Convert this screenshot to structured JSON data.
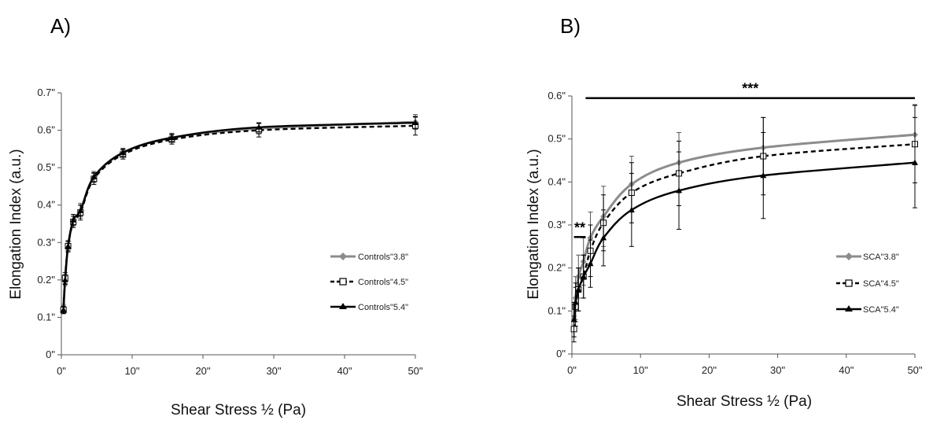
{
  "chart_data": [
    {
      "type": "line",
      "panel_label": "A)",
      "xlabel": "Shear Stress ½ (Pa)",
      "ylabel": "Elongation  Index  (a.u.)",
      "xlim": [
        0,
        50
      ],
      "ylim": [
        0,
        0.7
      ],
      "x_ticks": [
        0,
        10,
        20,
        30,
        40,
        50
      ],
      "x_tick_labels": [
        "0\"",
        "10\"",
        "20\"",
        "30\"",
        "40\"",
        "50\""
      ],
      "y_ticks": [
        0,
        0.1,
        0.2,
        0.3,
        0.4,
        0.5,
        0.6,
        0.7
      ],
      "y_tick_labels": [
        "0\"",
        "0.1\"",
        "0.2\"",
        "0.3\"",
        "0.4\"",
        "0.5\"",
        "0.6\"",
        "0.7\""
      ],
      "grid": false,
      "legend_position": "bottom-right",
      "x": [
        0.3,
        0.53,
        0.95,
        1.69,
        2.7,
        4.6,
        8.7,
        15.6,
        27.9,
        50
      ],
      "series": [
        {
          "name": "Controls\"3.8\"",
          "color": "#8c8c8c",
          "dash": "solid",
          "marker": "diamond",
          "values": [
            0.125,
            0.2,
            0.29,
            0.36,
            0.385,
            0.475,
            0.54,
            0.58,
            0.605,
            0.622
          ],
          "errors": [
            0.01,
            0.015,
            0.015,
            0.015,
            0.02,
            0.015,
            0.012,
            0.012,
            0.015,
            0.02
          ]
        },
        {
          "name": "Controls\"4.5\"",
          "color": "#000000",
          "dash": "dashed",
          "marker": "square",
          "values": [
            0.12,
            0.205,
            0.29,
            0.355,
            0.38,
            0.47,
            0.535,
            0.575,
            0.6,
            0.612
          ],
          "errors": [
            0.01,
            0.015,
            0.015,
            0.015,
            0.02,
            0.015,
            0.012,
            0.012,
            0.018,
            0.025
          ]
        },
        {
          "name": "Controls\"5.4\"",
          "color": "#000000",
          "dash": "solid",
          "marker": "triangle",
          "values": [
            0.12,
            0.2,
            0.29,
            0.36,
            0.385,
            0.475,
            0.54,
            0.58,
            0.608,
            0.62
          ],
          "errors": [
            0.01,
            0.012,
            0.012,
            0.015,
            0.015,
            0.012,
            0.01,
            0.01,
            0.012,
            0.015
          ]
        }
      ]
    },
    {
      "type": "line",
      "panel_label": "B)",
      "xlabel": "Shear Stress ½ (Pa)",
      "ylabel": "Elongation  Index  (a.u.)",
      "xlim": [
        0,
        50
      ],
      "ylim": [
        0,
        0.6
      ],
      "x_ticks": [
        0,
        10,
        20,
        30,
        40,
        50
      ],
      "x_tick_labels": [
        "0\"",
        "10\"",
        "20\"",
        "30\"",
        "40\"",
        "50\""
      ],
      "y_ticks": [
        0,
        0.1,
        0.2,
        0.3,
        0.4,
        0.5,
        0.6
      ],
      "y_tick_labels": [
        "0\"",
        "0.1\"",
        "0.2\"",
        "0.3\"",
        "0.4\"",
        "0.5\"",
        "0.6\""
      ],
      "grid": false,
      "legend_position": "bottom-right",
      "x": [
        0.3,
        0.53,
        0.95,
        1.69,
        2.7,
        4.6,
        8.7,
        15.6,
        27.9,
        50
      ],
      "annotations": [
        {
          "text": "***",
          "x_start": 2.0,
          "x_end": 50,
          "y": 0.595
        },
        {
          "text": "**",
          "x_start": 0.3,
          "x_end": 2.0,
          "y": 0.272
        }
      ],
      "series": [
        {
          "name": "SCA\"3.8\"",
          "color": "#8c8c8c",
          "dash": "solid",
          "marker": "diamond",
          "values": [
            0.08,
            0.13,
            0.18,
            0.215,
            0.27,
            0.32,
            0.395,
            0.445,
            0.48,
            0.51
          ],
          "errors": [
            0.04,
            0.05,
            0.05,
            0.055,
            0.06,
            0.07,
            0.065,
            0.07,
            0.07,
            0.07
          ]
        },
        {
          "name": "SCA\"4.5\"",
          "color": "#000000",
          "dash": "dashed",
          "marker": "square",
          "values": [
            0.058,
            0.11,
            0.15,
            0.18,
            0.24,
            0.305,
            0.375,
            0.42,
            0.46,
            0.488
          ],
          "errors": [
            0.03,
            0.045,
            0.05,
            0.05,
            0.06,
            0.065,
            0.07,
            0.075,
            0.09,
            0.09
          ]
        },
        {
          "name": "SCA\"5.4\"",
          "color": "#000000",
          "dash": "solid",
          "marker": "triangle",
          "values": [
            0.08,
            0.12,
            0.15,
            0.18,
            0.21,
            0.27,
            0.335,
            0.38,
            0.415,
            0.445
          ],
          "errors": [
            0.04,
            0.045,
            0.05,
            0.05,
            0.055,
            0.065,
            0.085,
            0.09,
            0.1,
            0.105
          ]
        }
      ]
    }
  ]
}
